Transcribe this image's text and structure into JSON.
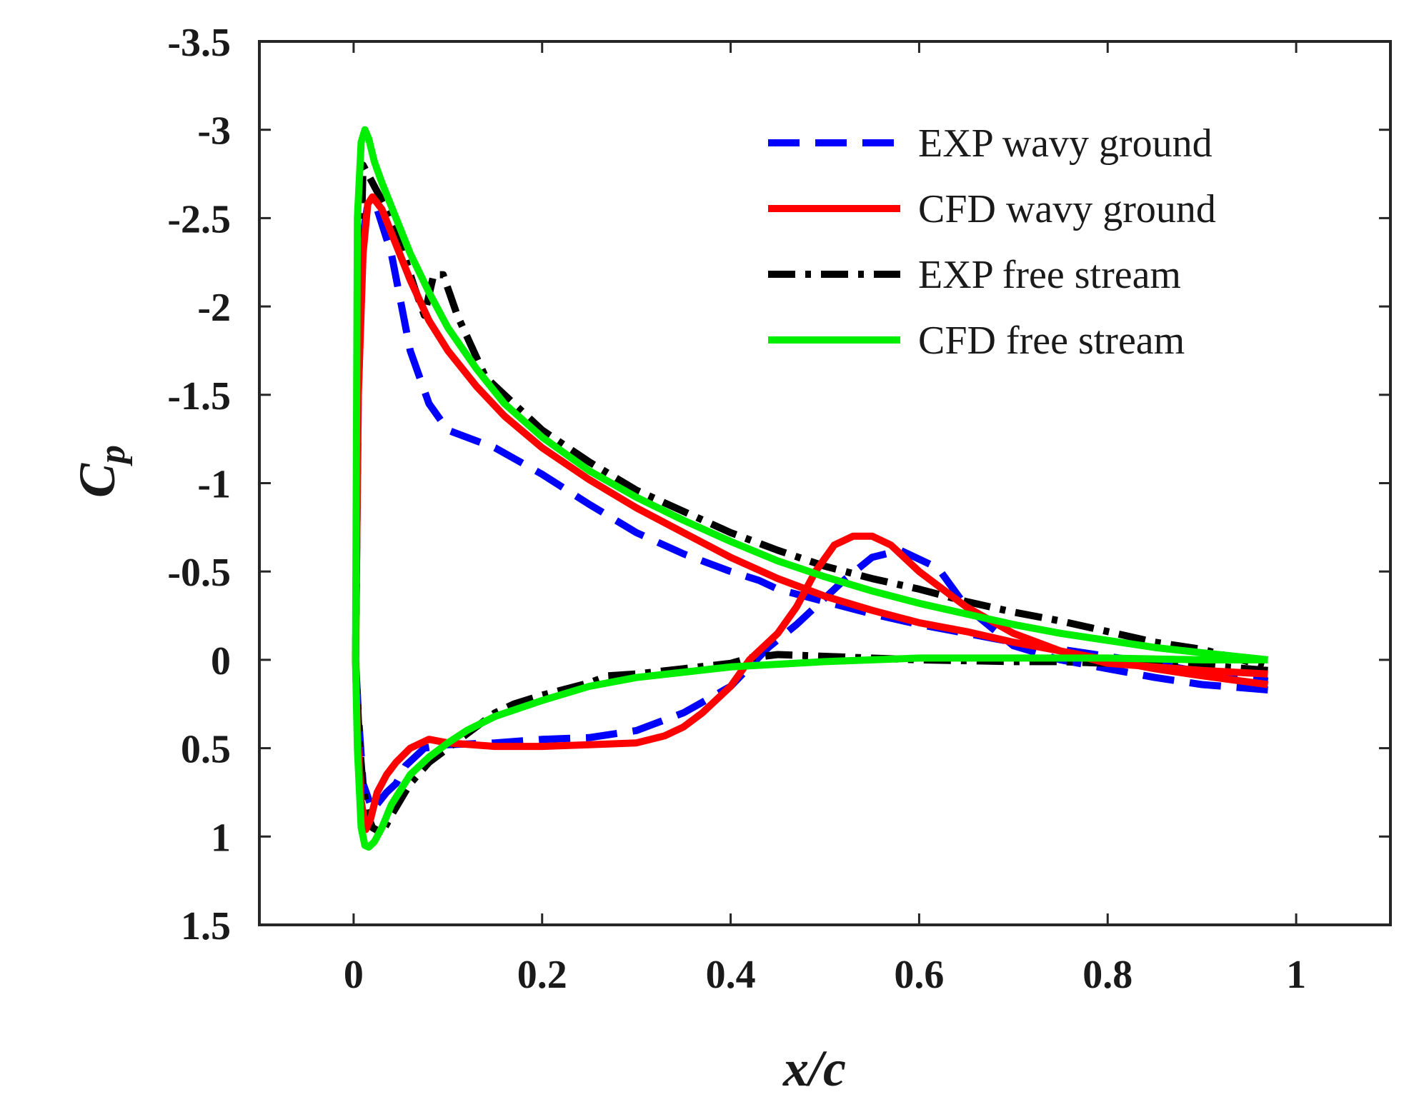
{
  "chart_data": {
    "type": "line",
    "xlabel": "x/c",
    "ylabel": {
      "main": "C",
      "sub": "p"
    },
    "xlim": [
      -0.1,
      1.1
    ],
    "ylim": [
      -3.5,
      1.5
    ],
    "y_reversed": true,
    "grid": false,
    "legend_position": "top-right",
    "x_ticks": [
      {
        "value": 0,
        "label": "0"
      },
      {
        "value": 0.2,
        "label": "0.2"
      },
      {
        "value": 0.4,
        "label": "0.4"
      },
      {
        "value": 0.6,
        "label": "0.6"
      },
      {
        "value": 0.8,
        "label": "0.8"
      },
      {
        "value": 1,
        "label": "1"
      }
    ],
    "y_ticks": [
      {
        "value": -3.5,
        "label": "-3.5"
      },
      {
        "value": -3,
        "label": "-3"
      },
      {
        "value": -2.5,
        "label": "-2.5"
      },
      {
        "value": -2,
        "label": "-2"
      },
      {
        "value": -1.5,
        "label": "-1.5"
      },
      {
        "value": -1,
        "label": "-1"
      },
      {
        "value": -0.5,
        "label": "-0.5"
      },
      {
        "value": 0,
        "label": "0"
      },
      {
        "value": 0.5,
        "label": "0.5"
      },
      {
        "value": 1,
        "label": "1"
      },
      {
        "value": 1.5,
        "label": "1.5"
      }
    ],
    "series": [
      {
        "name": "EXP wavy ground",
        "color": "#0000ff",
        "style": "dashed",
        "x": [
          0.97,
          0.9,
          0.85,
          0.8,
          0.75,
          0.7,
          0.65,
          0.62,
          0.58,
          0.55,
          0.52,
          0.5,
          0.47,
          0.44,
          0.4,
          0.35,
          0.3,
          0.25,
          0.2,
          0.15,
          0.1,
          0.075,
          0.065,
          0.055,
          0.045,
          0.035,
          0.02,
          0.01,
          0.005,
          0.002,
          0.005,
          0.01,
          0.015,
          0.025,
          0.04,
          0.06,
          0.08,
          0.1,
          0.15,
          0.2,
          0.25,
          0.3,
          0.35,
          0.4,
          0.43,
          0.45,
          0.5,
          0.55,
          0.6,
          0.65,
          0.7,
          0.75,
          0.8,
          0.85,
          0.9,
          0.97
        ],
        "y": [
          0.17,
          0.14,
          0.1,
          0.05,
          0.0,
          -0.08,
          -0.3,
          -0.52,
          -0.62,
          -0.58,
          -0.45,
          -0.35,
          -0.2,
          -0.07,
          0.15,
          0.3,
          0.4,
          0.44,
          0.45,
          0.47,
          0.48,
          0.5,
          0.55,
          0.6,
          0.7,
          0.75,
          0.85,
          0.7,
          0.3,
          0.0,
          -1.5,
          -2.4,
          -2.58,
          -2.55,
          -2.3,
          -1.75,
          -1.45,
          -1.3,
          -1.2,
          -1.05,
          -0.88,
          -0.72,
          -0.6,
          -0.5,
          -0.45,
          -0.4,
          -0.33,
          -0.26,
          -0.2,
          -0.15,
          -0.1,
          -0.06,
          -0.02,
          0.02,
          0.07,
          0.12
        ]
      },
      {
        "name": "CFD wavy ground",
        "color": "#ff0000",
        "style": "solid",
        "x": [
          0.97,
          0.9,
          0.85,
          0.8,
          0.75,
          0.7,
          0.65,
          0.6,
          0.57,
          0.55,
          0.53,
          0.51,
          0.49,
          0.47,
          0.45,
          0.42,
          0.4,
          0.37,
          0.35,
          0.33,
          0.3,
          0.25,
          0.2,
          0.15,
          0.1,
          0.08,
          0.06,
          0.045,
          0.035,
          0.025,
          0.018,
          0.013,
          0.008,
          0.004,
          0.002,
          0.005,
          0.01,
          0.015,
          0.02,
          0.03,
          0.045,
          0.06,
          0.08,
          0.1,
          0.13,
          0.16,
          0.2,
          0.25,
          0.3,
          0.35,
          0.4,
          0.45,
          0.5,
          0.55,
          0.6,
          0.65,
          0.7,
          0.75,
          0.8,
          0.85,
          0.9,
          0.97
        ],
        "y": [
          0.08,
          0.06,
          0.04,
          0.02,
          -0.05,
          -0.15,
          -0.3,
          -0.5,
          -0.65,
          -0.7,
          -0.7,
          -0.65,
          -0.5,
          -0.3,
          -0.15,
          0.0,
          0.15,
          0.3,
          0.38,
          0.43,
          0.47,
          0.48,
          0.49,
          0.49,
          0.47,
          0.45,
          0.5,
          0.58,
          0.65,
          0.75,
          0.9,
          0.96,
          0.8,
          0.4,
          0.0,
          -1.5,
          -2.3,
          -2.58,
          -2.62,
          -2.55,
          -2.35,
          -2.15,
          -1.92,
          -1.75,
          -1.55,
          -1.38,
          -1.2,
          -1.02,
          -0.86,
          -0.72,
          -0.58,
          -0.46,
          -0.36,
          -0.28,
          -0.21,
          -0.16,
          -0.1,
          -0.05,
          0.0,
          0.05,
          0.09,
          0.14
        ]
      },
      {
        "name": "EXP free stream",
        "color": "#000000",
        "style": "dashdot",
        "x": [
          0.97,
          0.9,
          0.85,
          0.8,
          0.75,
          0.7,
          0.6,
          0.5,
          0.45,
          0.42,
          0.4,
          0.35,
          0.3,
          0.27,
          0.25,
          0.2,
          0.17,
          0.15,
          0.12,
          0.1,
          0.08,
          0.06,
          0.04,
          0.03,
          0.02,
          0.015,
          0.01,
          0.006,
          0.002,
          0.005,
          0.01,
          0.02,
          0.035,
          0.05,
          0.065,
          0.075,
          0.085,
          0.095,
          0.11,
          0.14,
          0.2,
          0.25,
          0.3,
          0.35,
          0.4,
          0.45,
          0.5,
          0.55,
          0.6,
          0.65,
          0.7,
          0.75,
          0.8,
          0.85,
          0.9,
          0.97
        ],
        "y": [
          0.06,
          0.03,
          0.02,
          0.02,
          0.01,
          0.01,
          0.0,
          -0.02,
          -0.03,
          -0.01,
          0.02,
          0.05,
          0.08,
          0.09,
          0.13,
          0.2,
          0.25,
          0.3,
          0.42,
          0.5,
          0.58,
          0.7,
          0.88,
          0.98,
          0.95,
          0.88,
          0.72,
          0.45,
          0.0,
          -1.7,
          -2.8,
          -2.7,
          -2.55,
          -2.35,
          -2.1,
          -1.95,
          -2.18,
          -2.18,
          -1.95,
          -1.6,
          -1.3,
          -1.12,
          -0.96,
          -0.84,
          -0.72,
          -0.62,
          -0.53,
          -0.46,
          -0.4,
          -0.33,
          -0.27,
          -0.22,
          -0.16,
          -0.1,
          -0.06,
          0.04
        ]
      },
      {
        "name": "CFD free stream",
        "color": "#00ee00",
        "style": "solid",
        "x": [
          0.97,
          0.9,
          0.8,
          0.7,
          0.6,
          0.5,
          0.4,
          0.3,
          0.25,
          0.2,
          0.15,
          0.12,
          0.1,
          0.08,
          0.06,
          0.04,
          0.03,
          0.022,
          0.016,
          0.012,
          0.008,
          0.004,
          0.002,
          0.004,
          0.008,
          0.012,
          0.016,
          0.022,
          0.03,
          0.045,
          0.06,
          0.08,
          0.1,
          0.13,
          0.16,
          0.2,
          0.25,
          0.3,
          0.35,
          0.4,
          0.45,
          0.5,
          0.55,
          0.6,
          0.65,
          0.7,
          0.75,
          0.8,
          0.85,
          0.9,
          0.97
        ],
        "y": [
          0.0,
          0.0,
          -0.01,
          -0.01,
          -0.01,
          0.01,
          0.04,
          0.1,
          0.15,
          0.23,
          0.32,
          0.4,
          0.47,
          0.55,
          0.65,
          0.82,
          0.95,
          1.03,
          1.06,
          1.05,
          0.95,
          0.5,
          0.0,
          -2.5,
          -2.93,
          -3.0,
          -2.95,
          -2.82,
          -2.7,
          -2.5,
          -2.3,
          -2.08,
          -1.88,
          -1.65,
          -1.45,
          -1.26,
          -1.07,
          -0.92,
          -0.79,
          -0.67,
          -0.56,
          -0.47,
          -0.39,
          -0.32,
          -0.26,
          -0.2,
          -0.15,
          -0.11,
          -0.07,
          -0.04,
          0.0
        ]
      }
    ]
  }
}
